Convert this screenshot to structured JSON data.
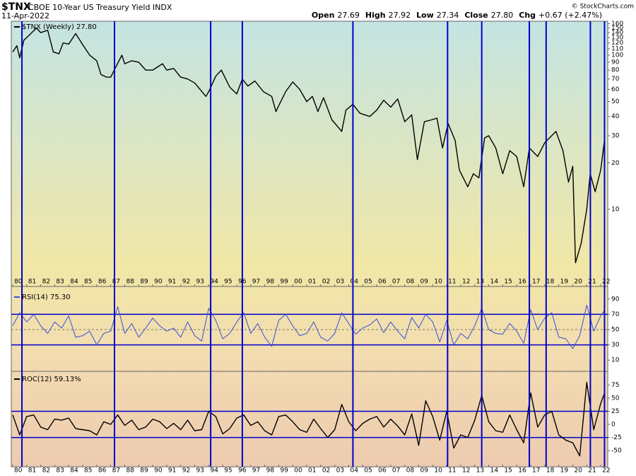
{
  "header": {
    "symbol": "$TNX",
    "name": "CBOE 10-Year US Treasury Yield INDX",
    "date": "11-Apr-2022",
    "quote": [
      [
        "Open",
        "27.69"
      ],
      [
        "High",
        "27.92"
      ],
      [
        "Low",
        "27.34"
      ],
      [
        "Close",
        "27.80"
      ],
      [
        "Chg",
        "+0.67 (+2.47%)"
      ]
    ],
    "credit": "© StockCharts.com"
  },
  "markers": [
    1980.66,
    1987.27,
    1994.14,
    1996.4,
    2004.3,
    2011.06,
    2013.5,
    2016.9,
    2018.1,
    2021.26,
    2022.27
  ],
  "markers_color": "#0000cc",
  "xlim": [
    1979.9,
    2022.5
  ],
  "xticks": [
    {
      "value": 1980,
      "label": "80"
    },
    {
      "value": 1981,
      "label": "81"
    },
    {
      "value": 1982,
      "label": "82"
    },
    {
      "value": 1983,
      "label": "83"
    },
    {
      "value": 1984,
      "label": "84"
    },
    {
      "value": 1985,
      "label": "85"
    },
    {
      "value": 1986,
      "label": "86"
    },
    {
      "value": 1987,
      "label": "87"
    },
    {
      "value": 1988,
      "label": "88"
    },
    {
      "value": 1989,
      "label": "89"
    },
    {
      "value": 1990,
      "label": "90"
    },
    {
      "value": 1991,
      "label": "91"
    },
    {
      "value": 1992,
      "label": "92"
    },
    {
      "value": 1993,
      "label": "93"
    },
    {
      "value": 1994,
      "label": "94"
    },
    {
      "value": 1995,
      "label": "95"
    },
    {
      "value": 1996,
      "label": "96"
    },
    {
      "value": 1997,
      "label": "97"
    },
    {
      "value": 1998,
      "label": "98"
    },
    {
      "value": 1999,
      "label": "99"
    },
    {
      "value": 2000,
      "label": "00"
    },
    {
      "value": 2001,
      "label": "01"
    },
    {
      "value": 2002,
      "label": "02"
    },
    {
      "value": 2003,
      "label": "03"
    },
    {
      "value": 2004,
      "label": "04"
    },
    {
      "value": 2005,
      "label": "05"
    },
    {
      "value": 2006,
      "label": "06"
    },
    {
      "value": 2007,
      "label": "07"
    },
    {
      "value": 2008,
      "label": "08"
    },
    {
      "value": 2009,
      "label": "09"
    },
    {
      "value": 2010,
      "label": "10"
    },
    {
      "value": 2011,
      "label": "11"
    },
    {
      "value": 2012,
      "label": "12"
    },
    {
      "value": 2013,
      "label": "13"
    },
    {
      "value": 2014,
      "label": "14"
    },
    {
      "value": 2015,
      "label": "15"
    },
    {
      "value": 2016,
      "label": "16"
    },
    {
      "value": 2017,
      "label": "17"
    },
    {
      "value": 2018,
      "label": "18"
    },
    {
      "value": 2019,
      "label": "19"
    },
    {
      "value": 2020,
      "label": "20"
    },
    {
      "value": 2021,
      "label": "21"
    },
    {
      "value": 2022,
      "label": "22"
    }
  ],
  "chart_data": [
    {
      "type": "line",
      "label": "$TNX (Weekly) 27.80",
      "color": "#000000",
      "log_scale": true,
      "ylim": [
        3.7,
        166
      ],
      "yticks": [
        160,
        150,
        140,
        130,
        120,
        110,
        100,
        90,
        80,
        70,
        60,
        50,
        40,
        30,
        20,
        10
      ],
      "x": [
        1980.0,
        1980.3,
        1980.5,
        1980.8,
        1981.0,
        1981.7,
        1982.0,
        1982.5,
        1982.9,
        1983.3,
        1983.6,
        1984.0,
        1984.5,
        1985.0,
        1985.5,
        1986.0,
        1986.3,
        1986.7,
        1987.0,
        1987.4,
        1987.8,
        1988.0,
        1988.5,
        1989.0,
        1989.5,
        1990.0,
        1990.7,
        1991.0,
        1991.5,
        1992.0,
        1992.5,
        1993.0,
        1993.8,
        1994.0,
        1994.5,
        1994.9,
        1995.5,
        1996.0,
        1996.4,
        1996.8,
        1997.3,
        1997.9,
        1998.5,
        1998.8,
        1999.0,
        1999.5,
        2000.0,
        2000.5,
        2001.0,
        2001.4,
        2001.8,
        2002.2,
        2002.8,
        2003.5,
        2003.8,
        2004.3,
        2004.8,
        2005.5,
        2006.0,
        2006.5,
        2007.0,
        2007.5,
        2008.0,
        2008.5,
        2008.9,
        2009.4,
        2009.9,
        2010.3,
        2010.7,
        2011.1,
        2011.6,
        2011.9,
        2012.5,
        2012.9,
        2013.3,
        2013.7,
        2014.0,
        2014.5,
        2015.0,
        2015.5,
        2016.0,
        2016.5,
        2016.9,
        2017.5,
        2018.0,
        2018.8,
        2019.3,
        2019.7,
        2020.0,
        2020.2,
        2020.6,
        2021.0,
        2021.25,
        2021.6,
        2022.0,
        2022.27
      ],
      "values": [
        105,
        115,
        96,
        125,
        130,
        150,
        140,
        145,
        105,
        102,
        120,
        118,
        138,
        117,
        100,
        92,
        75,
        72,
        72,
        85,
        100,
        88,
        92,
        90,
        80,
        80,
        88,
        80,
        82,
        72,
        70,
        66,
        54,
        58,
        73,
        80,
        62,
        56,
        70,
        63,
        68,
        58,
        54,
        43,
        47,
        58,
        67,
        60,
        50,
        54,
        43,
        53,
        38,
        32,
        44,
        48,
        42,
        40,
        44,
        51,
        46,
        52,
        37,
        41,
        21,
        37,
        38,
        39,
        25,
        36,
        28,
        18,
        14,
        17,
        16,
        29,
        30,
        25,
        17,
        24,
        22,
        14,
        25,
        22,
        27,
        32,
        24,
        15,
        19,
        4.5,
        6,
        10,
        17,
        13,
        18,
        28
      ]
    },
    {
      "type": "line",
      "label": "RSI(14) 75.30",
      "color": "#3a4fd8",
      "ylim": [
        0,
        100
      ],
      "yticks": [
        90,
        70,
        50,
        30,
        10
      ],
      "reference_lines": [
        {
          "value": 70,
          "style": "solid"
        },
        {
          "value": 50,
          "style": "dashed"
        },
        {
          "value": 30,
          "style": "solid"
        }
      ],
      "x": [
        1980.0,
        1980.5,
        1981.0,
        1981.5,
        1982.0,
        1982.5,
        1983.0,
        1983.5,
        1984.0,
        1984.5,
        1985.0,
        1985.5,
        1986.0,
        1986.5,
        1987.0,
        1987.5,
        1988.0,
        1988.5,
        1989.0,
        1989.5,
        1990.0,
        1990.5,
        1991.0,
        1991.5,
        1992.0,
        1992.5,
        1993.0,
        1993.5,
        1994.0,
        1994.5,
        1995.0,
        1995.5,
        1996.0,
        1996.5,
        1997.0,
        1997.5,
        1998.0,
        1998.5,
        1999.0,
        1999.5,
        2000.0,
        2000.5,
        2001.0,
        2001.5,
        2002.0,
        2002.5,
        2003.0,
        2003.5,
        2004.0,
        2004.5,
        2005.0,
        2005.5,
        2006.0,
        2006.5,
        2007.0,
        2007.5,
        2008.0,
        2008.5,
        2009.0,
        2009.5,
        2010.0,
        2010.5,
        2011.0,
        2011.5,
        2012.0,
        2012.5,
        2013.0,
        2013.5,
        2014.0,
        2014.5,
        2015.0,
        2015.5,
        2016.0,
        2016.5,
        2017.0,
        2017.5,
        2018.0,
        2018.5,
        2019.0,
        2019.5,
        2020.0,
        2020.5,
        2021.0,
        2021.5,
        2022.0,
        2022.27
      ],
      "values": [
        55,
        72,
        60,
        70,
        55,
        45,
        60,
        52,
        68,
        40,
        42,
        48,
        30,
        45,
        48,
        80,
        45,
        58,
        40,
        52,
        65,
        55,
        48,
        52,
        40,
        60,
        42,
        35,
        78,
        62,
        38,
        45,
        60,
        72,
        45,
        58,
        40,
        28,
        62,
        70,
        55,
        42,
        45,
        60,
        40,
        35,
        45,
        72,
        58,
        44,
        52,
        56,
        64,
        46,
        60,
        48,
        38,
        66,
        52,
        70,
        60,
        34,
        62,
        30,
        45,
        38,
        55,
        78,
        50,
        45,
        44,
        58,
        48,
        32,
        76,
        50,
        65,
        72,
        40,
        38,
        25,
        42,
        82,
        48,
        68,
        75.3
      ]
    },
    {
      "type": "line",
      "label": "ROC(12) 59.13%",
      "color": "#000000",
      "ylim": [
        -74,
        97
      ],
      "yticks": [
        75,
        50,
        25,
        0,
        -25,
        -50
      ],
      "reference_lines": [
        {
          "value": 25,
          "style": "solid"
        },
        {
          "value": -25,
          "style": "solid"
        }
      ],
      "x": [
        1980.0,
        1980.5,
        1981.0,
        1981.5,
        1982.0,
        1982.5,
        1983.0,
        1983.5,
        1984.0,
        1984.5,
        1985.0,
        1985.5,
        1986.0,
        1986.5,
        1987.0,
        1987.5,
        1988.0,
        1988.5,
        1989.0,
        1989.5,
        1990.0,
        1990.5,
        1991.0,
        1991.5,
        1992.0,
        1992.5,
        1993.0,
        1993.5,
        1994.0,
        1994.5,
        1995.0,
        1995.5,
        1996.0,
        1996.5,
        1997.0,
        1997.5,
        1998.0,
        1998.5,
        1999.0,
        1999.5,
        2000.0,
        2000.5,
        2001.0,
        2001.5,
        2002.0,
        2002.5,
        2003.0,
        2003.5,
        2004.0,
        2004.5,
        2005.0,
        2005.5,
        2006.0,
        2006.5,
        2007.0,
        2007.5,
        2008.0,
        2008.5,
        2009.0,
        2009.5,
        2010.0,
        2010.5,
        2011.0,
        2011.5,
        2012.0,
        2012.5,
        2013.0,
        2013.5,
        2014.0,
        2014.5,
        2015.0,
        2015.5,
        2016.0,
        2016.5,
        2017.0,
        2017.5,
        2018.0,
        2018.5,
        2019.0,
        2019.5,
        2020.0,
        2020.5,
        2021.0,
        2021.5,
        2022.0,
        2022.27
      ],
      "values": [
        18,
        -20,
        15,
        18,
        -5,
        -10,
        10,
        8,
        12,
        -8,
        -10,
        -12,
        -20,
        5,
        0,
        18,
        -2,
        8,
        -10,
        -5,
        10,
        5,
        -8,
        2,
        -10,
        8,
        -12,
        -10,
        25,
        15,
        -18,
        -8,
        12,
        18,
        -2,
        5,
        -12,
        -20,
        15,
        18,
        5,
        -10,
        -15,
        10,
        -8,
        -25,
        -10,
        38,
        5,
        -12,
        2,
        10,
        15,
        -5,
        10,
        -3,
        -20,
        20,
        -40,
        45,
        15,
        -30,
        25,
        -45,
        -20,
        -25,
        8,
        55,
        5,
        -12,
        -15,
        18,
        -10,
        -35,
        60,
        -5,
        18,
        25,
        -20,
        -30,
        -35,
        -60,
        80,
        -10,
        40,
        59.13
      ]
    }
  ]
}
